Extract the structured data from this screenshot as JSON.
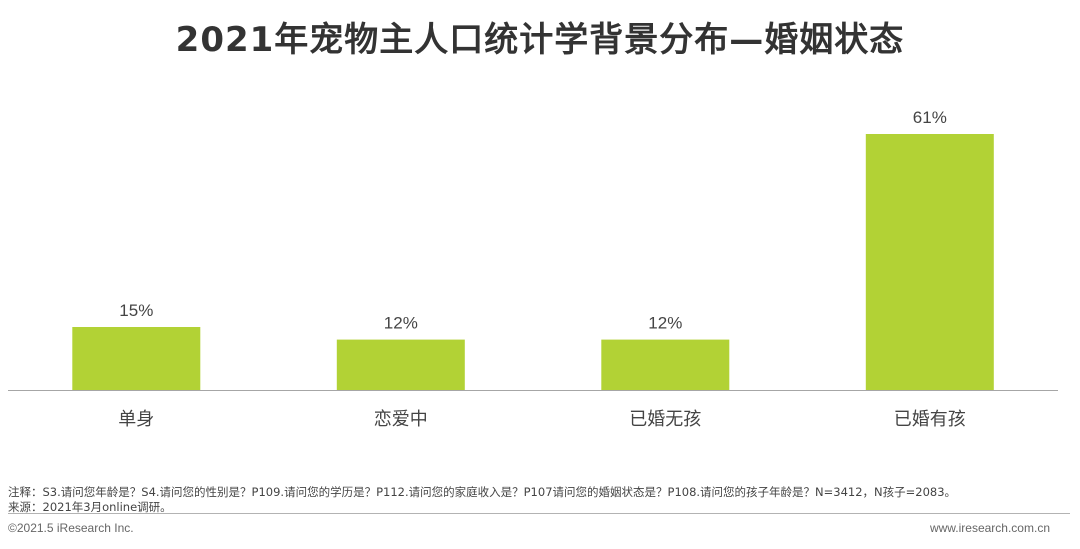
{
  "title": "2021年宠物主人口统计学背景分布—婚姻状态",
  "chart_data": {
    "type": "bar",
    "categories": [
      "单身",
      "恋爱中",
      "已婚无孩",
      "已婚有孩"
    ],
    "values": [
      15,
      12,
      12,
      61
    ],
    "value_labels": [
      "15%",
      "12%",
      "12%",
      "61%"
    ],
    "ylim": [
      0,
      65
    ],
    "bar_color": "#b2d235",
    "grid": false
  },
  "notes": {
    "note": "注释：S3.请问您年龄是？S4.请问您的性别是？P109.请问您的学历是？P112.请问您的家庭收入是？P107请问您的婚姻状态是？P108.请问您的孩子年龄是？N=3412，N孩子=2083。",
    "source": "来源：2021年3月online调研。"
  },
  "footer": {
    "copyright": "©2021.5 iResearch Inc.",
    "website": "www.iresearch.com.cn"
  }
}
